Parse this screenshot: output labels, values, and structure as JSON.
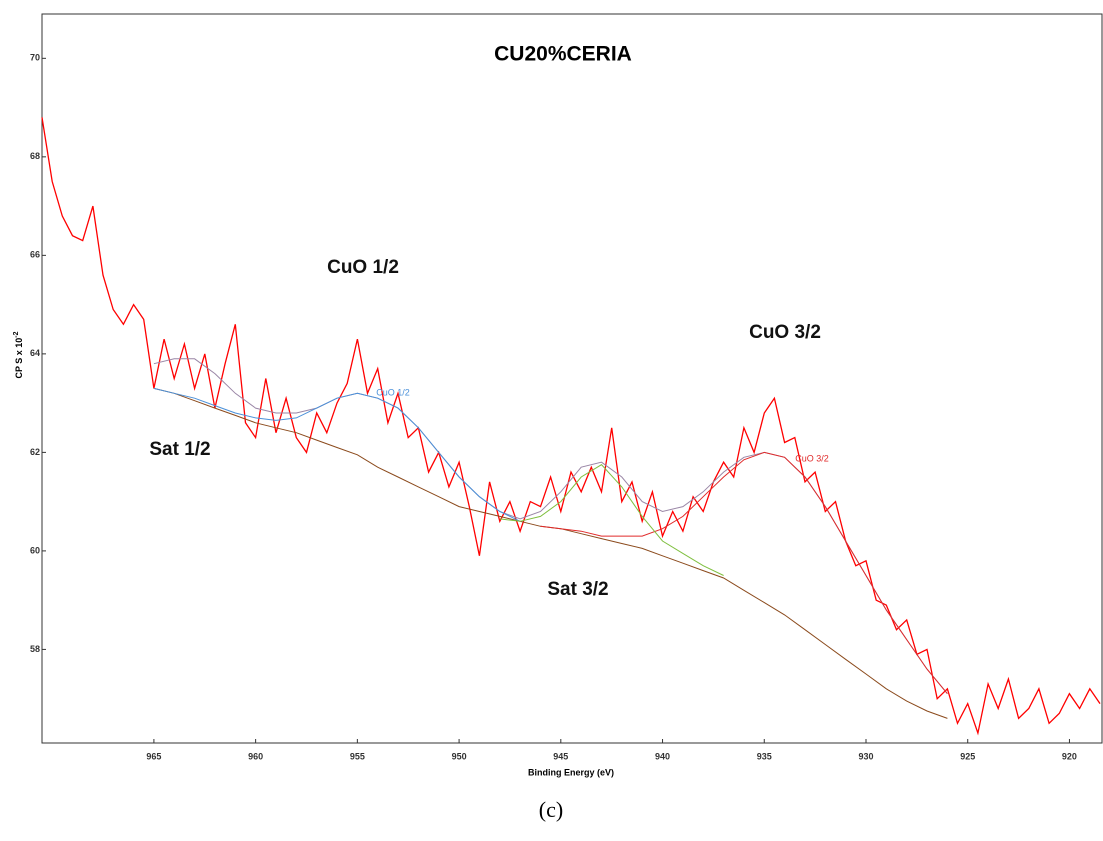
{
  "chart_data": {
    "type": "line",
    "title": "CU20%CERIA",
    "x_label": "Binding Energy (eV)",
    "y_label": "CP S x 10",
    "y_label_exponent": "-2",
    "caption": "(c)",
    "xlim": [
      970.5,
      918.4
    ],
    "ylim": [
      56.1,
      70.9
    ],
    "xticks": [
      965,
      960,
      955,
      950,
      945,
      940,
      935,
      930,
      925,
      920
    ],
    "yticks": [
      58,
      60,
      62,
      64,
      66,
      68,
      70
    ],
    "annotations": [
      "CuO 1/2",
      "CuO 3/2",
      "Sat 1/2",
      "Sat 3/2"
    ],
    "curve_labels": [
      "CuO 1/2",
      "CuO 3/2"
    ],
    "series": [
      {
        "color": "#ff0000",
        "x": [
          970.5,
          970,
          969.5,
          969,
          968.5,
          968,
          967.5,
          967,
          966.5,
          966,
          965.5,
          965,
          964.5,
          964,
          963.5,
          963,
          962.5,
          962,
          961.5,
          961,
          960.5,
          960,
          959.5,
          959,
          958.5,
          958,
          957.5,
          957,
          956.5,
          956,
          955.5,
          955,
          954.5,
          954,
          953.5,
          953,
          952.5,
          952,
          951.5,
          951,
          950.5,
          950,
          949.5,
          949,
          948.5,
          948,
          947.5,
          947,
          946.5,
          946,
          945.5,
          945,
          944.5,
          944,
          943.5,
          943,
          942.5,
          942,
          941.5,
          941,
          940.5,
          940,
          939.5,
          939,
          938.5,
          938,
          937.5,
          937,
          936.5,
          936,
          935.5,
          935,
          934.5,
          934,
          933.5,
          933,
          932.5,
          932,
          931.5,
          931,
          930.5,
          930,
          929.5,
          929,
          928.5,
          928,
          927.5,
          927,
          926.5,
          926,
          925.5,
          925,
          924.5,
          924,
          923.5,
          923,
          922.5,
          922,
          921.5,
          921,
          920.5,
          920,
          919.5,
          919,
          918.5
        ],
        "values": [
          68.8,
          67.5,
          66.8,
          66.4,
          66.3,
          67.0,
          65.6,
          64.9,
          64.6,
          65.0,
          64.7,
          63.3,
          64.3,
          63.5,
          64.2,
          63.3,
          64.0,
          62.9,
          63.8,
          64.6,
          62.6,
          62.3,
          63.5,
          62.4,
          63.1,
          62.3,
          62.0,
          62.8,
          62.4,
          63.0,
          63.4,
          64.3,
          63.2,
          63.7,
          62.6,
          63.2,
          62.3,
          62.5,
          61.6,
          62.0,
          61.3,
          61.8,
          60.9,
          59.9,
          61.4,
          60.6,
          61.0,
          60.4,
          61.0,
          60.9,
          61.5,
          60.8,
          61.6,
          61.2,
          61.7,
          61.2,
          62.5,
          61.0,
          61.4,
          60.6,
          61.2,
          60.3,
          60.8,
          60.4,
          61.1,
          60.8,
          61.4,
          61.8,
          61.5,
          62.5,
          62.0,
          62.8,
          63.1,
          62.2,
          62.3,
          61.4,
          61.6,
          60.8,
          61.0,
          60.2,
          59.7,
          59.8,
          59.0,
          58.9,
          58.4,
          58.6,
          57.9,
          58.0,
          57.0,
          57.2,
          56.5,
          56.9,
          56.3,
          57.3,
          56.8,
          57.4,
          56.6,
          56.8,
          57.2,
          56.5,
          56.7,
          57.1,
          56.8,
          57.2,
          56.9
        ]
      },
      {
        "color": "#8b4a1c",
        "x": [
          965,
          964,
          963,
          962,
          961,
          960,
          959,
          958,
          957,
          956,
          955,
          954,
          953,
          952,
          951,
          950,
          949,
          948,
          947,
          946,
          945,
          944,
          943,
          942,
          941,
          940,
          939,
          938,
          937,
          936,
          935,
          934,
          933,
          932,
          931,
          930,
          929,
          928,
          927,
          926
        ],
        "values": [
          63.3,
          63.2,
          63.05,
          62.9,
          62.75,
          62.6,
          62.5,
          62.4,
          62.25,
          62.1,
          61.95,
          61.7,
          61.5,
          61.3,
          61.1,
          60.9,
          60.8,
          60.7,
          60.6,
          60.5,
          60.45,
          60.35,
          60.25,
          60.15,
          60.05,
          59.9,
          59.75,
          59.6,
          59.45,
          59.2,
          58.95,
          58.7,
          58.4,
          58.1,
          57.8,
          57.5,
          57.2,
          56.95,
          56.75,
          56.6
        ]
      },
      {
        "color": "#9a86a6",
        "x": [
          965,
          964,
          963,
          962,
          961,
          960,
          959,
          958,
          957,
          956,
          955,
          954,
          953,
          952,
          951,
          950,
          949,
          948,
          947,
          946,
          945,
          944,
          943,
          942,
          941,
          940,
          939,
          938,
          937,
          936,
          935,
          934,
          933,
          932,
          931,
          930,
          929,
          928,
          927,
          926
        ],
        "values": [
          63.8,
          63.9,
          63.9,
          63.6,
          63.2,
          62.9,
          62.8,
          62.8,
          62.9,
          63.1,
          63.2,
          63.1,
          62.9,
          62.5,
          62.0,
          61.5,
          61.1,
          60.8,
          60.65,
          60.8,
          61.2,
          61.7,
          61.8,
          61.5,
          61.0,
          60.8,
          60.9,
          61.2,
          61.6,
          61.9,
          62.0,
          61.9,
          61.5,
          60.9,
          60.2,
          59.5,
          58.8,
          58.2,
          57.6,
          57.1
        ]
      },
      {
        "color": "#4a90d9",
        "x": [
          965,
          964,
          963,
          962,
          961,
          960,
          959,
          958,
          957,
          956,
          955,
          954,
          953,
          952,
          951,
          950,
          949,
          948,
          947,
          946,
          945,
          944,
          943,
          942,
          941,
          940,
          939,
          938,
          937,
          936,
          935,
          934,
          933,
          932,
          931,
          930,
          929,
          928,
          927,
          926
        ],
        "values": [
          63.3,
          63.2,
          63.1,
          62.95,
          62.8,
          62.7,
          62.65,
          62.7,
          62.9,
          63.1,
          63.2,
          63.1,
          62.9,
          62.5,
          62.0,
          61.5,
          61.1,
          60.8,
          60.6,
          null,
          null,
          null,
          null,
          null,
          null,
          null,
          null,
          null,
          null,
          null,
          null,
          null,
          null,
          null,
          null,
          null,
          null,
          null,
          null,
          null
        ]
      },
      {
        "color": "#e02a2a",
        "x": [
          965,
          964,
          963,
          962,
          961,
          960,
          959,
          958,
          957,
          956,
          955,
          954,
          953,
          952,
          951,
          950,
          949,
          948,
          947,
          946,
          945,
          944,
          943,
          942,
          941,
          940,
          939,
          938,
          937,
          936,
          935,
          934,
          933,
          932,
          931,
          930,
          929,
          928,
          927,
          926
        ],
        "values": [
          null,
          null,
          null,
          null,
          null,
          null,
          null,
          null,
          null,
          null,
          null,
          null,
          null,
          null,
          null,
          null,
          null,
          null,
          null,
          60.5,
          60.45,
          60.4,
          60.3,
          60.3,
          60.3,
          60.45,
          60.7,
          61.1,
          61.5,
          61.85,
          62.0,
          61.9,
          61.5,
          60.9,
          60.2,
          59.5,
          58.8,
          58.2,
          57.6,
          57.1
        ]
      },
      {
        "color": "#7fbf3f",
        "x": [
          965,
          964,
          963,
          962,
          961,
          960,
          959,
          958,
          957,
          956,
          955,
          954,
          953,
          952,
          951,
          950,
          949,
          948,
          947,
          946,
          945,
          944,
          943,
          942,
          941,
          940,
          939,
          938,
          937,
          936,
          935,
          934,
          933,
          932,
          931,
          930,
          929,
          928,
          927,
          926
        ],
        "values": [
          null,
          null,
          null,
          null,
          null,
          null,
          null,
          null,
          null,
          null,
          null,
          null,
          null,
          null,
          null,
          null,
          null,
          60.65,
          60.6,
          60.7,
          61.0,
          61.5,
          61.75,
          61.3,
          60.7,
          60.2,
          59.95,
          59.7,
          59.5,
          null,
          null,
          null,
          null,
          null,
          null,
          null,
          null,
          null,
          null,
          null
        ]
      }
    ]
  }
}
